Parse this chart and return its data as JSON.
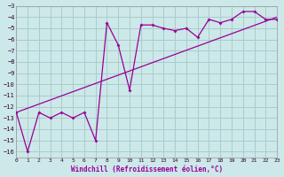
{
  "title": "",
  "xlabel": "Windchill (Refroidissement éolien,°C)",
  "bg_color": "#cce8e8",
  "grid_color": "#aacccc",
  "line_color": "#990099",
  "line1_x": [
    0,
    1,
    2,
    3,
    4,
    5,
    6,
    7,
    8,
    9,
    10,
    11,
    12,
    13,
    14,
    15,
    16,
    17,
    18,
    19,
    20,
    21,
    22,
    23
  ],
  "line1_y": [
    -12.5,
    -16.0,
    -12.5,
    -13.0,
    -12.5,
    -13.0,
    -12.5,
    -15.0,
    -4.5,
    -6.5,
    -10.5,
    -4.7,
    -4.7,
    -5.0,
    -5.2,
    -5.0,
    -5.8,
    -4.2,
    -4.5,
    -4.2,
    -3.5,
    -3.5,
    -4.2,
    -4.2
  ],
  "line2_x": [
    0,
    23
  ],
  "line2_y": [
    -12.5,
    -4.0
  ],
  "xlim": [
    0,
    23
  ],
  "ylim": [
    -16.5,
    -3.0
  ],
  "xticks": [
    0,
    1,
    2,
    3,
    4,
    5,
    6,
    7,
    8,
    9,
    10,
    11,
    12,
    13,
    14,
    15,
    16,
    17,
    18,
    19,
    20,
    21,
    22,
    23
  ],
  "yticks": [
    -3,
    -4,
    -5,
    -6,
    -7,
    -8,
    -9,
    -10,
    -11,
    -12,
    -13,
    -14,
    -15,
    -16
  ]
}
